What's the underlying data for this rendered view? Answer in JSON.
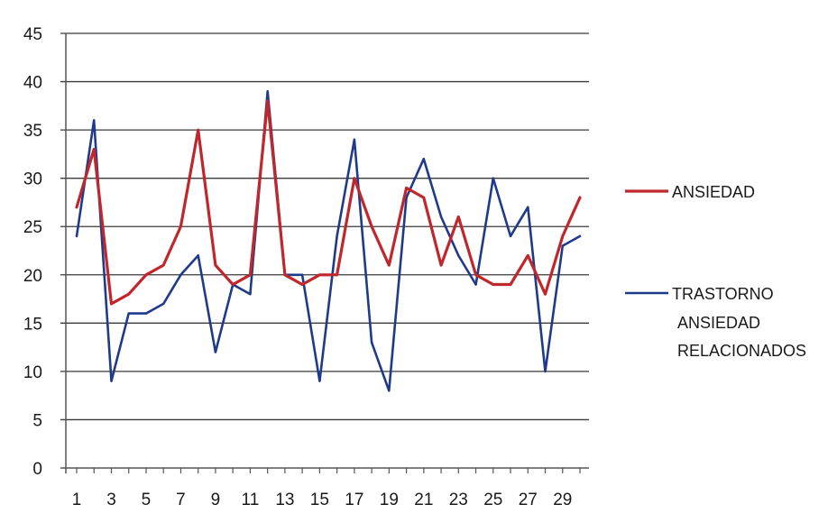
{
  "chart_data": {
    "type": "line",
    "title": "",
    "xlabel": "",
    "ylabel": "",
    "x": [
      1,
      2,
      3,
      4,
      5,
      6,
      7,
      8,
      9,
      10,
      11,
      12,
      13,
      14,
      15,
      16,
      17,
      18,
      19,
      20,
      21,
      22,
      23,
      24,
      25,
      26,
      27,
      28,
      29,
      30
    ],
    "x_tick_labels": [
      "1",
      "3",
      "5",
      "7",
      "9",
      "11",
      "13",
      "15",
      "17",
      "19",
      "21",
      "23",
      "25",
      "27",
      "29"
    ],
    "y_tick_labels": [
      "0",
      "5",
      "10",
      "15",
      "20",
      "25",
      "30",
      "35",
      "40",
      "45"
    ],
    "ylim": [
      0,
      45
    ],
    "grid": "horizontal",
    "legend_position": "right",
    "series": [
      {
        "name": "ANSIEDAD",
        "color": "#c0272d",
        "values": [
          27,
          33,
          17,
          18,
          20,
          21,
          25,
          35,
          21,
          19,
          20,
          38,
          20,
          19,
          20,
          20,
          30,
          25,
          21,
          29,
          28,
          21,
          26,
          20,
          19,
          19,
          22,
          18,
          24,
          28
        ]
      },
      {
        "name": "TRASTORNO ANSIEDAD RELACIONADOS",
        "legend_lines": [
          "TRASTORNO",
          "ANSIEDAD",
          "RELACIONADOS"
        ],
        "color": "#1f3a8a",
        "values": [
          24,
          36,
          9,
          16,
          16,
          17,
          20,
          22,
          12,
          19,
          18,
          39,
          20,
          20,
          9,
          24,
          34,
          13,
          8,
          28,
          32,
          26,
          22,
          19,
          30,
          24,
          27,
          10,
          23,
          24
        ]
      }
    ]
  }
}
